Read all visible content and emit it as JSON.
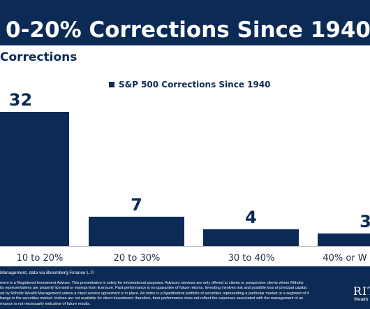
{
  "header": {
    "title": "0-20% Corrections Since 1940",
    "subtitle": "Corrections"
  },
  "chart_data": {
    "type": "bar",
    "categories": [
      "10 to 20%",
      "20 to 30%",
      "30 to 40%",
      "40% or W"
    ],
    "series": [
      {
        "name": "S&P 500 Corrections Since 1940",
        "values": [
          32,
          7,
          4,
          3
        ]
      }
    ],
    "data_labels": [
      "32",
      "7",
      "4",
      "3"
    ],
    "ylim": [
      0,
      32
    ],
    "grid": false,
    "legend_position": "top-center",
    "bar_color": "#0b2a55"
  },
  "footer": {
    "source": "Management, data via Bloomberg Finance L.P.",
    "disclaimer_lines": [
      "ment is a Registered Investment Adviser. This presentation is solely for informational purposes. Advisory services are only offered to clients or prospective clients where Ritholtz",
      "its representatives are properly licensed or exempt from licensure. Past performance is no guarantee of future returns. Investing involves risk and possible loss of principal capital.",
      "ed by Ritholtz Wealth Management unless a client service agreement is in place. An index is a hypothetical portfolio of securities representing a particular market or a segment of it",
      "hange in the securities market. Indices are not available for direct investment; therefore, their performance does not reflect the expenses associated with the management of an",
      "rmance is not necessarily indicative of future results."
    ],
    "logo_main": "RIT",
    "logo_sub": "Wealth"
  },
  "colors": {
    "navy": "#0b2a55",
    "background": "#ffffff",
    "axis": "#bfbfbf"
  }
}
